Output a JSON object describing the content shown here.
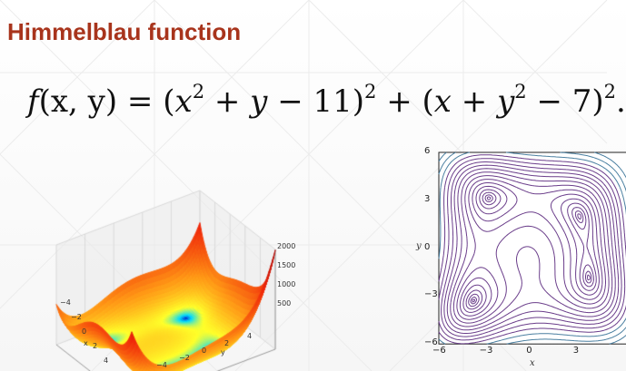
{
  "slide": {
    "title": "Himmelblau function"
  },
  "formula": {
    "f": "f",
    "args": "(x, y) = (",
    "x1": "x",
    "sq1": "2",
    "mid1": " + ",
    "y1": "y",
    "mid2": " − 11)",
    "sq2": "2",
    "mid3": " + (",
    "x2": "x",
    "mid4": " + ",
    "y2": "y",
    "sq3": "2",
    "mid5": " − 7)",
    "sq4": "2",
    "end": "."
  },
  "colors": {
    "title": "#a8341c",
    "contour_line": "#6a3d8a"
  },
  "chart_data": [
    {
      "type": "surface3d",
      "function": "(x^2 + y - 11)^2 + (x + y^2 - 7)^2",
      "x_range": [
        -6,
        6
      ],
      "y_range": [
        -6,
        6
      ],
      "xlabel": "x",
      "ylabel": "y",
      "x_ticks": [
        "−4",
        "−2",
        "0",
        "2",
        "4"
      ],
      "y_ticks": [
        "−4",
        "−2",
        "0",
        "2",
        "4"
      ],
      "z_ticks": [
        "500",
        "1000",
        "1500",
        "2000"
      ],
      "colormap": "jet"
    },
    {
      "type": "contour",
      "function": "(x^2 + y - 11)^2 + (x + y^2 - 7)^2",
      "xlim": [
        -6,
        6
      ],
      "ylim": [
        -6,
        6
      ],
      "xlabel": "x",
      "ylabel": "y",
      "x_ticks": [
        "−6",
        "−3",
        "0",
        "3"
      ],
      "y_ticks": [
        "6",
        "3",
        "0",
        "−3",
        "−6"
      ],
      "minima": [
        [
          3,
          2
        ],
        [
          -2.805,
          3.131
        ],
        [
          -3.779,
          -3.283
        ],
        [
          3.584,
          -1.848
        ]
      ]
    }
  ]
}
